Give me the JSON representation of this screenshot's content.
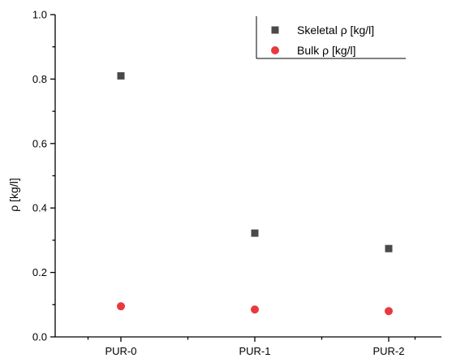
{
  "chart_data": {
    "type": "scatter",
    "categories": [
      "PUR-0",
      "PUR-1",
      "PUR-2"
    ],
    "series": [
      {
        "name": "Skeletal ρ [kg/l]",
        "marker": "square",
        "color": "#4a4a4a",
        "values": [
          0.81,
          0.322,
          0.274
        ]
      },
      {
        "name": "Bulk ρ [kg/l]",
        "marker": "circle",
        "color": "#e8393e",
        "values": [
          0.095,
          0.085,
          0.08
        ]
      }
    ],
    "xlabel": "",
    "ylabel": "ρ [kg/l]",
    "ylim": [
      0.0,
      1.0
    ],
    "yticks": [
      "0.0",
      "0.2",
      "0.4",
      "0.6",
      "0.8",
      "1.0"
    ],
    "grid": false,
    "legend_position": "top-right"
  }
}
